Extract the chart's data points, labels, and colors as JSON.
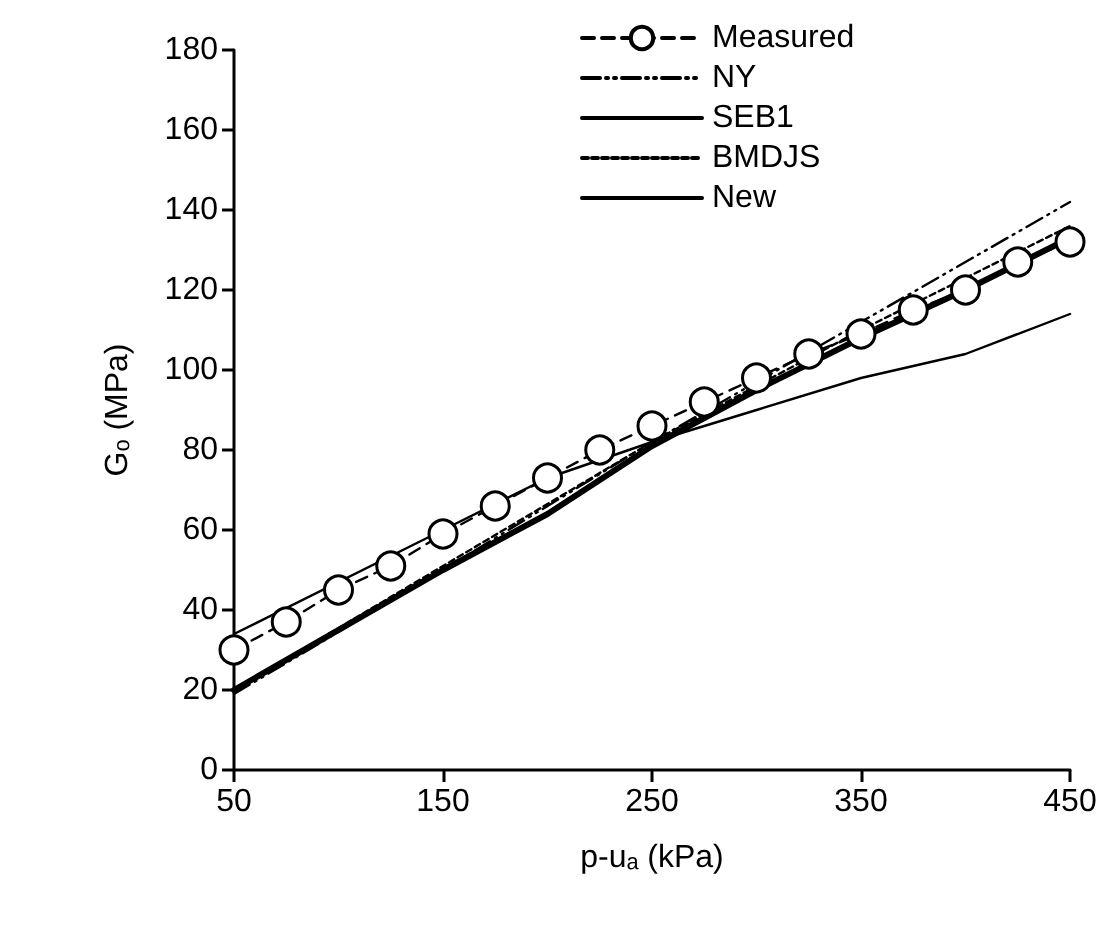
{
  "chart_data": {
    "type": "line",
    "xlabel": "p-uₐ (kPa)",
    "ylabel": "Gₒ (MPa)",
    "xlim": [
      50,
      450
    ],
    "xticks": [
      50,
      150,
      250,
      350,
      450
    ],
    "ylim": [
      0,
      180
    ],
    "yticks": [
      0,
      20,
      40,
      60,
      80,
      100,
      120,
      140,
      160,
      180
    ],
    "grid": false,
    "legend": "top",
    "series": [
      {
        "name": "Measured",
        "color": "#000000",
        "marker": "circle",
        "line_style": "dashed",
        "x": [
          50,
          75,
          100,
          125,
          150,
          175,
          200,
          225,
          250,
          275,
          300,
          325,
          350,
          375,
          400,
          425,
          450
        ],
        "values": [
          30,
          37,
          45,
          51,
          59,
          66,
          73,
          80,
          86,
          92,
          98,
          104,
          109,
          115,
          120,
          127,
          132
        ]
      },
      {
        "name": "NY",
        "color": "#000000",
        "marker": "none",
        "line_style": "dashdot",
        "x": [
          50,
          150,
          250,
          350,
          450
        ],
        "values": [
          19,
          50,
          82,
          112,
          142
        ]
      },
      {
        "name": "SEB1",
        "color": "#000000",
        "marker": "none",
        "line_style": "solid",
        "x": [
          50,
          150,
          200,
          250,
          300,
          350,
          400,
          450
        ],
        "values": [
          34,
          60,
          73,
          82,
          90,
          98,
          104,
          114
        ]
      },
      {
        "name": "BMDJS",
        "color": "#000000",
        "marker": "none",
        "line_style": "dotted",
        "x": [
          50,
          150,
          250,
          350,
          450
        ],
        "values": [
          20,
          51,
          82,
          110,
          136
        ]
      },
      {
        "name": "New",
        "color": "#000000",
        "marker": "none",
        "line_style": "solid",
        "x": [
          50,
          150,
          200,
          250,
          300,
          350,
          400,
          450
        ],
        "values": [
          20,
          50,
          64,
          81,
          95,
          108,
          120,
          133
        ]
      }
    ]
  }
}
